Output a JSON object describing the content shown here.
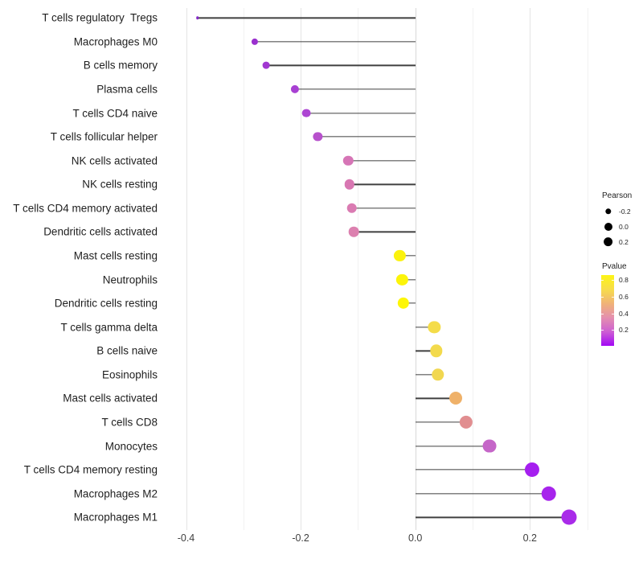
{
  "chart_data": {
    "type": "scatter",
    "style": "lollipop (dot + horizontal segment from 0)",
    "orientation": "horizontal",
    "title": "",
    "xlabel": "",
    "ylabel": "",
    "xlim": [
      -0.44,
      0.315
    ],
    "x_ticks": [
      -0.4,
      -0.2,
      0.0,
      0.2
    ],
    "x_tick_labels": [
      "-0.4",
      "-0.2",
      "0.0",
      "0.2"
    ],
    "x_minor_ticks": [
      -0.3,
      -0.1,
      0.1,
      0.3
    ],
    "grid": "vertical major+minor gridlines only, white background",
    "categories": [
      "T cells regulatory  Tregs",
      "Macrophages M0",
      "B cells memory",
      "Plasma cells",
      "T cells CD4 naive",
      "T cells follicular helper",
      "NK cells activated",
      "NK cells resting",
      "T cells CD4 memory activated",
      "Dendritic cells activated",
      "Mast cells resting",
      "Neutrophils",
      "Dendritic cells resting",
      "T cells gamma delta",
      "B cells naive",
      "Eosinophils",
      "Mast cells activated",
      "T cells CD8",
      "Monocytes",
      "T cells CD4 memory resting",
      "Macrophages M2",
      "Macrophages M1"
    ],
    "values": [
      -0.38,
      -0.28,
      -0.26,
      -0.21,
      -0.19,
      -0.17,
      -0.117,
      -0.115,
      -0.111,
      -0.107,
      -0.027,
      -0.023,
      -0.021,
      0.033,
      0.037,
      0.039,
      0.071,
      0.089,
      0.13,
      0.204,
      0.233,
      0.268
    ],
    "point_colors": [
      "#8428C8",
      "#9A30CE",
      "#A137D1",
      "#A840D3",
      "#AC45D2",
      "#B751CC",
      "#D675B6",
      "#D877B2",
      "#DA7BB2",
      "#DC80AF",
      "#FBF20D",
      "#FCF40A",
      "#FDF607",
      "#F4DC49",
      "#F3DA4C",
      "#F1D750",
      "#EFB169",
      "#E18E90",
      "#C566C8",
      "#A51FEF",
      "#A724EC",
      "#A92BE9"
    ],
    "legend": {
      "size": {
        "title": "Pearson",
        "entries": [
          {
            "label": "-0.2",
            "radius": 3.7
          },
          {
            "label": "0.0",
            "radius": 5.0
          },
          {
            "label": "0.2",
            "radius": 5.9
          }
        ],
        "dot_color": "#000000"
      },
      "color": {
        "title": "Pvalue",
        "tick_labels": [
          "0.8",
          "0.6",
          "0.4",
          "0.2"
        ],
        "gradient_top_to_bottom": [
          "#FDF515",
          "#F7DD4B",
          "#F0B377",
          "#E48FAE",
          "#CD5FD3",
          "#A208F5"
        ],
        "range_top_to_bottom": [
          0.86,
          0.0
        ]
      },
      "position": "right"
    },
    "colors": {
      "stem": "#404040",
      "grid_major": "#e4e4e4",
      "grid_minor": "#f1f1f1",
      "zero_line": "#d8d8d8",
      "axis_text": "#404040",
      "label_text": "#1f1f1f",
      "background": "#ffffff"
    }
  }
}
